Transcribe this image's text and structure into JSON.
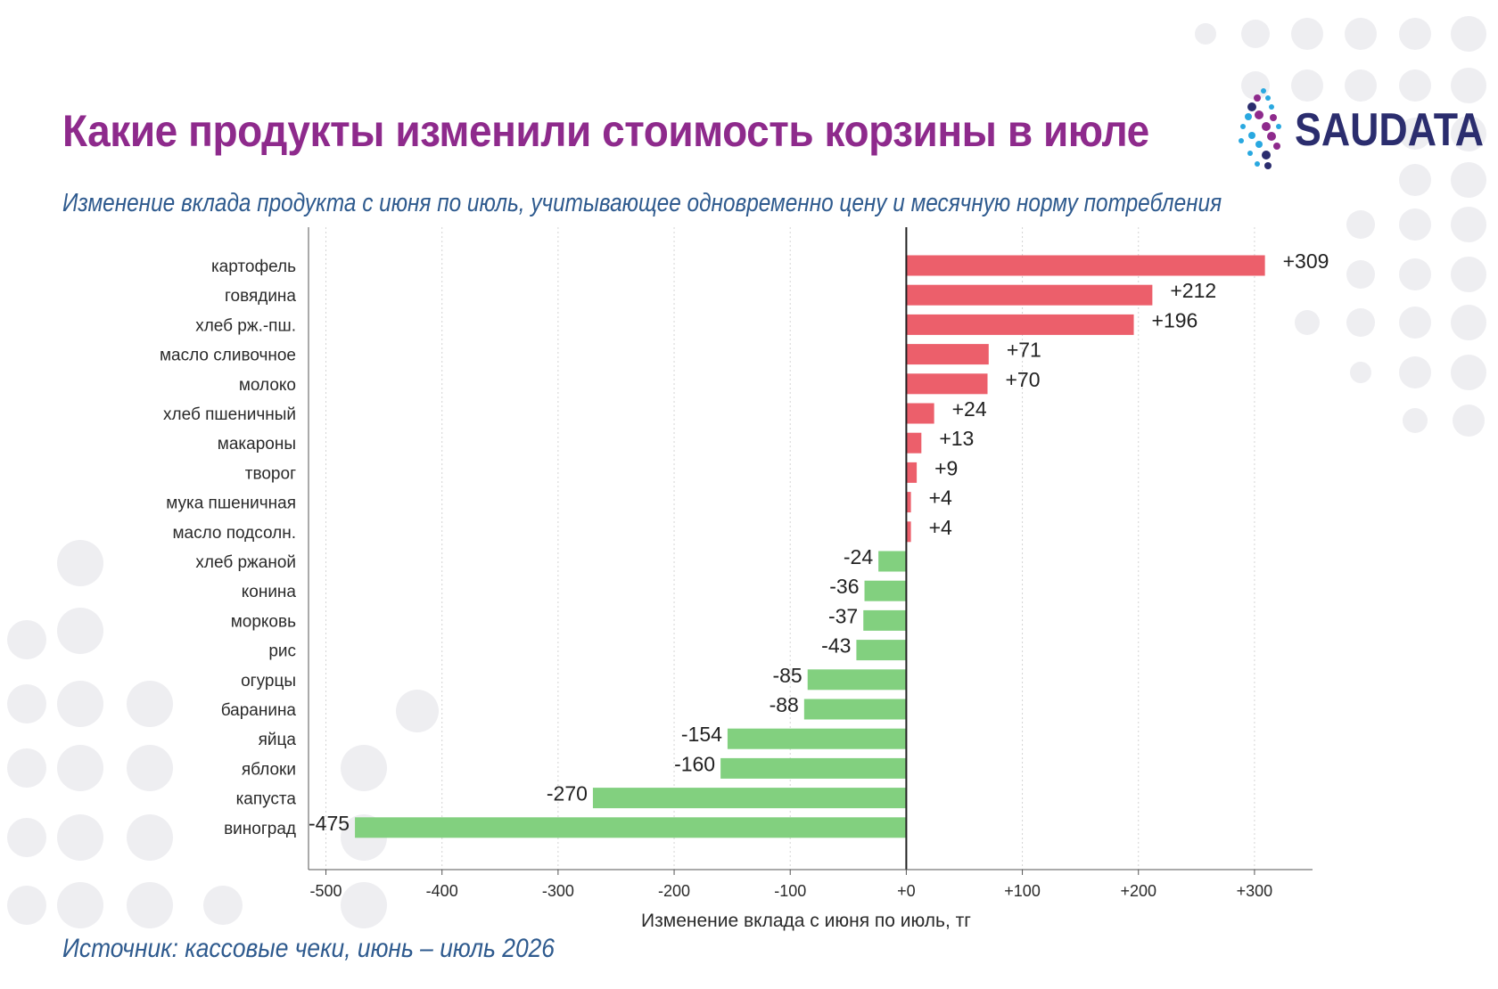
{
  "header": {
    "title": "Какие продукты изменили стоимость корзины в июле",
    "subtitle": "Изменение вклада продукта с июня по июль, учитывающее одновременно цену и месячную норму потребления",
    "source": "Источник: кассовые чеки, июнь – июль 2026"
  },
  "logo": {
    "text_part1": "SAU",
    "text_part2": "DATA"
  },
  "colors": {
    "title": "#8e2a8c",
    "subtitle": "#2e5a8e",
    "positive": "#ec5f6b",
    "negative": "#82d07f",
    "logo_text": "#2b2d6e"
  },
  "chart_data": {
    "type": "bar",
    "orientation": "horizontal",
    "categories": [
      "картофель",
      "говядина",
      "хлеб рж.-пш.",
      "масло сливочное",
      "молоко",
      "хлеб пшеничный",
      "макароны",
      "творог",
      "мука пшеничная",
      "масло подсолн.",
      "хлеб ржаной",
      "конина",
      "морковь",
      "рис",
      "огурцы",
      "баранина",
      "яйца",
      "яблоки",
      "капуста",
      "виноград"
    ],
    "values": [
      309,
      212,
      196,
      71,
      70,
      24,
      13,
      9,
      4,
      4,
      -24,
      -36,
      -37,
      -43,
      -85,
      -88,
      -154,
      -160,
      -270,
      -475
    ],
    "value_labels": [
      "+309",
      "+212",
      "+196",
      "+71",
      "+70",
      "+24",
      "+13",
      "+9",
      "+4",
      "+4",
      "-24",
      "-36",
      "-37",
      "-43",
      "-85",
      "-88",
      "-154",
      "-160",
      "-270",
      "-475"
    ],
    "xlabel": "Изменение вклада с июня по июль, тг",
    "ylabel": "",
    "xlim": [
      -515,
      350
    ],
    "xticks": [
      -500,
      -400,
      -300,
      -200,
      -100,
      0,
      100,
      200,
      300
    ],
    "xtick_labels": [
      "-500",
      "-400",
      "-300",
      "-200",
      "-100",
      "+0",
      "+100",
      "+200",
      "+300"
    ],
    "grid": "vertical dotted",
    "legend": "none"
  }
}
